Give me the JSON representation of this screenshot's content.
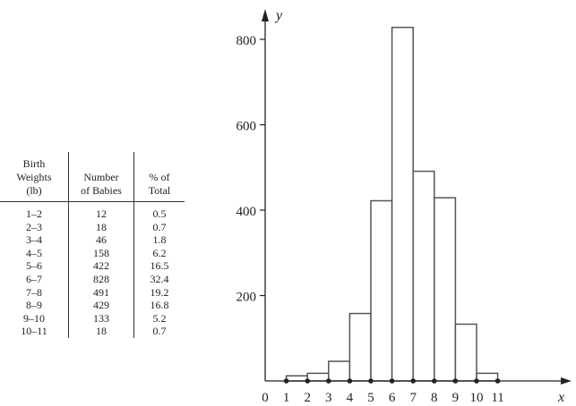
{
  "table": {
    "headers": [
      "Birth\nWeights\n(lb)",
      "Number\nof Babies",
      "% of\nTotal"
    ],
    "rows": [
      [
        "1–2",
        "12",
        "0.5"
      ],
      [
        "2–3",
        "18",
        "0.7"
      ],
      [
        "3–4",
        "46",
        "1.8"
      ],
      [
        "4–5",
        "158",
        "6.2"
      ],
      [
        "5–6",
        "422",
        "16.5"
      ],
      [
        "6–7",
        "828",
        "32.4"
      ],
      [
        "7–8",
        "491",
        "19.2"
      ],
      [
        "8–9",
        "429",
        "16.8"
      ],
      [
        "9–10",
        "133",
        "5.2"
      ],
      [
        "10–11",
        "18",
        "0.7"
      ]
    ]
  },
  "chart_data": {
    "type": "bar",
    "xlabel": "x",
    "ylabel": "y",
    "xticks": [
      "0",
      "1",
      "2",
      "3",
      "4",
      "5",
      "6",
      "7",
      "8",
      "9",
      "10",
      "11"
    ],
    "yticks": [
      "200",
      "400",
      "600",
      "800"
    ],
    "ylim": [
      0,
      860
    ],
    "xlim": [
      0,
      11
    ],
    "bins": [
      [
        1,
        2
      ],
      [
        2,
        3
      ],
      [
        3,
        4
      ],
      [
        4,
        5
      ],
      [
        5,
        6
      ],
      [
        6,
        7
      ],
      [
        7,
        8
      ],
      [
        8,
        9
      ],
      [
        9,
        10
      ],
      [
        10,
        11
      ]
    ],
    "values": [
      12,
      18,
      46,
      158,
      422,
      828,
      491,
      429,
      133,
      18
    ],
    "grid": false
  }
}
